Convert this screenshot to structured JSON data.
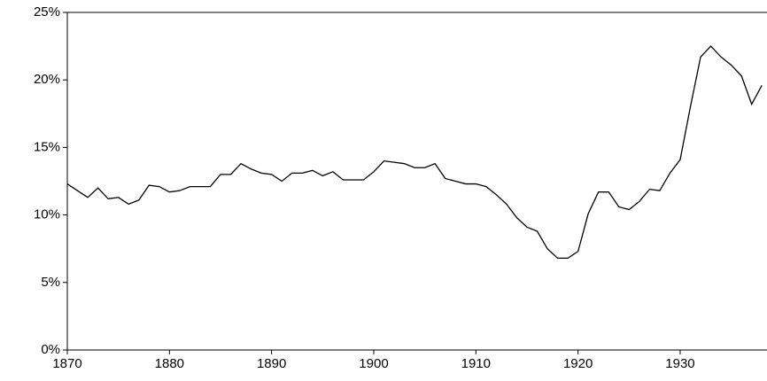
{
  "chart_data": {
    "type": "line",
    "x": [
      1870,
      1871,
      1872,
      1873,
      1874,
      1875,
      1876,
      1877,
      1878,
      1879,
      1880,
      1881,
      1882,
      1883,
      1884,
      1885,
      1886,
      1887,
      1888,
      1889,
      1890,
      1891,
      1892,
      1893,
      1894,
      1895,
      1896,
      1897,
      1898,
      1899,
      1900,
      1901,
      1902,
      1903,
      1904,
      1905,
      1906,
      1907,
      1908,
      1909,
      1910,
      1911,
      1912,
      1913,
      1914,
      1915,
      1916,
      1917,
      1918,
      1919,
      1920,
      1921,
      1922,
      1923,
      1924,
      1925,
      1926,
      1927,
      1928,
      1929,
      1930,
      1931,
      1932,
      1933,
      1934,
      1935,
      1936,
      1937,
      1938
    ],
    "values": [
      12.3,
      11.8,
      11.3,
      12.0,
      11.2,
      11.3,
      10.8,
      11.1,
      12.2,
      12.1,
      11.7,
      11.8,
      12.1,
      12.1,
      12.1,
      13.0,
      13.0,
      13.8,
      13.4,
      13.1,
      13.0,
      12.5,
      13.1,
      13.1,
      13.3,
      12.9,
      13.2,
      12.6,
      12.6,
      12.6,
      13.2,
      14.0,
      13.9,
      13.8,
      13.5,
      13.5,
      13.8,
      12.7,
      12.5,
      12.3,
      12.3,
      12.1,
      11.5,
      10.8,
      9.8,
      9.1,
      8.8,
      7.5,
      6.8,
      6.8,
      7.3,
      10.1,
      11.7,
      11.7,
      10.6,
      10.4,
      11.0,
      11.9,
      11.8,
      13.1,
      14.1,
      18.0,
      21.7,
      22.5,
      21.7,
      21.1,
      20.3,
      18.2,
      19.6
    ],
    "color": "#000000",
    "xlim": [
      1870,
      1938.5
    ],
    "xticks": [
      1870,
      1880,
      1890,
      1900,
      1910,
      1920,
      1930
    ],
    "ylim": [
      0,
      25
    ],
    "yticks": [
      {
        "value": 0,
        "label": "0%"
      },
      {
        "value": 5,
        "label": "5%"
      },
      {
        "value": 10,
        "label": "10%"
      },
      {
        "value": 15,
        "label": "15%"
      },
      {
        "value": 20,
        "label": "20%"
      },
      {
        "value": 25,
        "label": "25%"
      }
    ]
  }
}
